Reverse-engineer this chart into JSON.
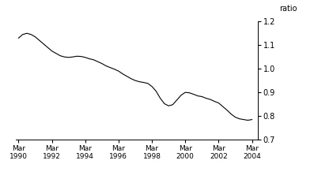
{
  "title": "",
  "ylabel": "ratio",
  "ylim": [
    0.7,
    1.2
  ],
  "yticks": [
    0.7,
    0.8,
    0.9,
    1.0,
    1.1,
    1.2
  ],
  "xtick_years": [
    1990,
    1992,
    1994,
    1996,
    1998,
    2000,
    2002,
    2004
  ],
  "line_color": "#000000",
  "line_width": 0.8,
  "background_color": "#ffffff",
  "data_x_years": [
    1990.17,
    1990.42,
    1990.67,
    1990.92,
    1991.17,
    1991.42,
    1991.67,
    1991.92,
    1992.17,
    1992.42,
    1992.67,
    1992.92,
    1993.17,
    1993.42,
    1993.67,
    1993.92,
    1994.17,
    1994.42,
    1994.67,
    1994.92,
    1995.17,
    1995.42,
    1995.67,
    1995.92,
    1996.17,
    1996.42,
    1996.67,
    1996.92,
    1997.17,
    1997.42,
    1997.67,
    1997.92,
    1998.17,
    1998.42,
    1998.67,
    1998.92,
    1999.17,
    1999.42,
    1999.67,
    1999.92,
    2000.17,
    2000.42,
    2000.67,
    2000.92,
    2001.17,
    2001.42,
    2001.67,
    2001.92,
    2002.17,
    2002.42,
    2002.67,
    2002.92,
    2003.17,
    2003.42,
    2003.67,
    2003.92,
    2004.17
  ],
  "data_y": [
    1.13,
    1.145,
    1.15,
    1.145,
    1.135,
    1.12,
    1.105,
    1.09,
    1.075,
    1.065,
    1.055,
    1.05,
    1.048,
    1.05,
    1.053,
    1.052,
    1.048,
    1.042,
    1.038,
    1.03,
    1.022,
    1.012,
    1.005,
    0.998,
    0.99,
    0.978,
    0.968,
    0.958,
    0.95,
    0.945,
    0.942,
    0.938,
    0.925,
    0.905,
    0.875,
    0.852,
    0.843,
    0.848,
    0.868,
    0.888,
    0.9,
    0.898,
    0.892,
    0.885,
    0.882,
    0.875,
    0.87,
    0.862,
    0.855,
    0.84,
    0.825,
    0.808,
    0.795,
    0.788,
    0.785,
    0.782,
    0.785
  ]
}
